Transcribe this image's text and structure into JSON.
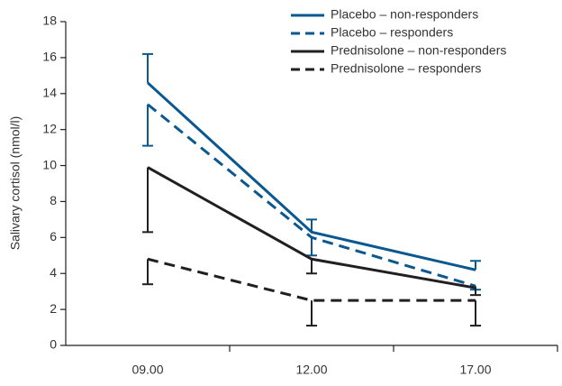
{
  "chart_data": {
    "type": "line",
    "y_label": "Salivary cortisol (nmol/l)",
    "categories": [
      "09.00",
      "12.00",
      "17.00"
    ],
    "ylim": [
      0,
      18
    ],
    "yticks": [
      0,
      2,
      4,
      6,
      8,
      10,
      12,
      14,
      16,
      18
    ],
    "legend": "top-right",
    "series": [
      {
        "name": "Placebo – non-responders",
        "color": "#0b5891",
        "dash": false,
        "values": [
          14.6,
          6.3,
          4.2
        ],
        "errors": [
          1.6,
          0.7,
          0.5
        ],
        "error_direction": "up"
      },
      {
        "name": "Placebo – responders",
        "color": "#0b5891",
        "dash": true,
        "values": [
          13.4,
          6.0,
          3.3
        ],
        "errors": [
          2.3,
          1.0,
          0.2
        ],
        "error_direction": "down"
      },
      {
        "name": "Prednisolone – non-responders",
        "color": "#231f20",
        "dash": false,
        "values": [
          9.9,
          4.8,
          3.2
        ],
        "errors": [
          3.6,
          0.8,
          0.4
        ],
        "error_direction": "down"
      },
      {
        "name": "Prednisolone – responders",
        "color": "#231f20",
        "dash": true,
        "values": [
          4.8,
          2.5,
          2.5
        ],
        "errors": [
          1.4,
          1.4,
          1.4
        ],
        "error_direction": "down"
      }
    ]
  }
}
